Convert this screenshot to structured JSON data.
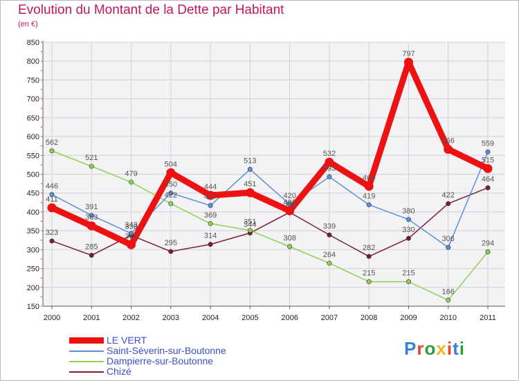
{
  "title": "Evolution du Montant de la Dette par Habitant",
  "subtitle": "(en €)",
  "brand": {
    "text": "Proxiti",
    "colors": [
      "#3a7fd9",
      "#e8442f",
      "#2e9e3a",
      "#f2b51d",
      "#e8442f",
      "#3a7fd9",
      "#2e9e3a"
    ]
  },
  "chart_data": {
    "type": "line",
    "x": [
      "2000",
      "2001",
      "2002",
      "2003",
      "2004",
      "2005",
      "2006",
      "2007",
      "2008",
      "2009",
      "2010",
      "2011"
    ],
    "ylim": [
      150,
      850
    ],
    "yticks": [
      150,
      200,
      250,
      300,
      350,
      400,
      450,
      500,
      550,
      600,
      650,
      700,
      750,
      800,
      850
    ],
    "grid": true,
    "legend_position": "bottom-left",
    "series": [
      {
        "name": "Chizé",
        "color": "#7a1f2b",
        "values": [
          323,
          285,
          338,
          295,
          314,
          344,
          399,
          339,
          282,
          330,
          422,
          464
        ],
        "labels": [
          "323",
          "285",
          "338",
          "295",
          "314",
          "344",
          "399",
          "339",
          "282",
          "330",
          "422",
          "464"
        ]
      },
      {
        "name": "Dampierre-sur-Boutonne",
        "color": "#8fd14f",
        "values": [
          562,
          521,
          479,
          422,
          369,
          351,
          308,
          264,
          215,
          215,
          166,
          294
        ],
        "labels": [
          "562",
          "521",
          "479",
          "422",
          "369",
          "351",
          "308",
          "264",
          "215",
          "215",
          "166",
          "294"
        ]
      },
      {
        "name": "Saint-Séverin-sur-Boutonne",
        "color": "#5b8fd6",
        "values": [
          446,
          391,
          343,
          450,
          417,
          513,
          420,
          493,
          419,
          380,
          306,
          559
        ],
        "labels": [
          "446",
          "391",
          "343",
          "450",
          "417",
          "513",
          "420",
          "493",
          "419",
          "380",
          "306",
          "559"
        ]
      },
      {
        "name": "LE VERT",
        "color": "#ee1111",
        "values": [
          411,
          363,
          313,
          504,
          444,
          451,
          403,
          532,
          468,
          797,
          566,
          515
        ],
        "labels": [
          "411",
          "363",
          "313",
          "504",
          "444",
          "451",
          "403",
          "532",
          "468",
          "797",
          "566",
          "515"
        ]
      }
    ],
    "legend_order": [
      "LE VERT",
      "Saint-Séverin-sur-Boutonne",
      "Dampierre-sur-Boutonne",
      "Chizé"
    ]
  }
}
